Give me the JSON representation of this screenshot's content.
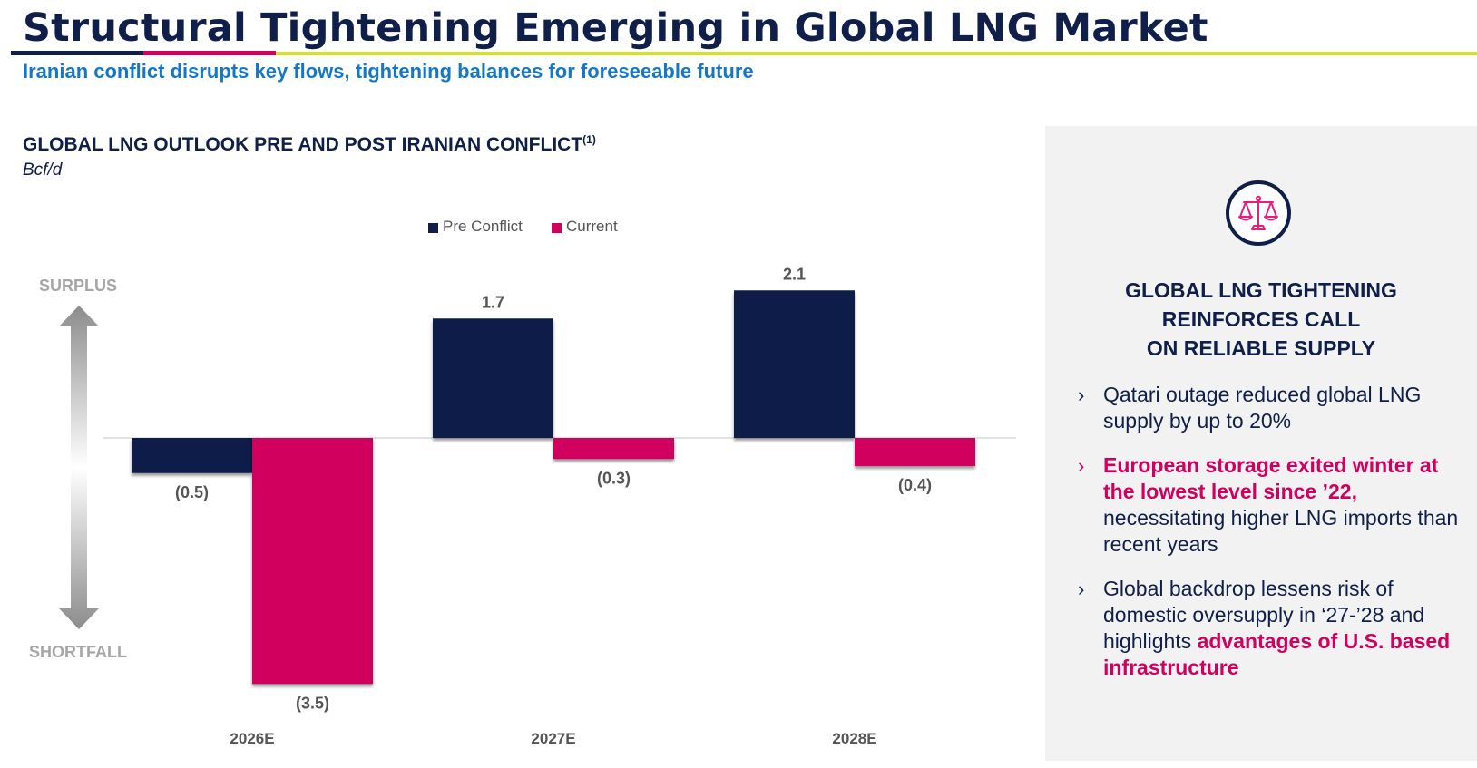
{
  "header": {
    "title": "Structural Tightening Emerging in Global LNG Market",
    "subtitle": "Iranian conflict disrupts key flows, tightening balances for foreseeable future"
  },
  "chart_header": {
    "title": "GLOBAL LNG OUTLOOK PRE AND POST IRANIAN CONFLICT",
    "footnote_marker": "(1)",
    "units": "Bcf/d"
  },
  "axis_words": {
    "top": "SURPLUS",
    "bottom": "SHORTFALL"
  },
  "colors": {
    "navy": "#0f1f4a",
    "pink": "#d1005e",
    "lime": "#d3e02b",
    "blue": "#1677c7",
    "gray": "#a6a6a6"
  },
  "chart_data": {
    "type": "bar",
    "title": "GLOBAL LNG OUTLOOK PRE AND POST IRANIAN CONFLICT",
    "ylabel": "Bcf/d",
    "categories": [
      "2026E",
      "2027E",
      "2028E"
    ],
    "series": [
      {
        "name": "Pre Conflict",
        "color": "#0f1f4a",
        "values": [
          -0.5,
          1.7,
          2.1
        ],
        "labels": [
          "(0.5)",
          "1.7",
          "2.1"
        ]
      },
      {
        "name": "Current",
        "color": "#d1005e",
        "values": [
          -3.5,
          -0.3,
          -0.4
        ],
        "labels": [
          "(3.5)",
          "(0.3)",
          "(0.4)"
        ]
      }
    ],
    "legend_position": "top-center",
    "grid": false
  },
  "side_panel": {
    "icon": "balance-scale-icon",
    "heading_lines": [
      "GLOBAL LNG TIGHTENING",
      "REINFORCES CALL",
      "ON RELIABLE SUPPLY"
    ],
    "bullets": [
      {
        "marker": "›",
        "text": "Qatari outage reduced global LNG supply by up to 20%"
      },
      {
        "marker": "›",
        "highlight": "European storage exited winter at the lowest level since ’22,",
        "text": " necessitating higher LNG imports than recent years"
      },
      {
        "marker": "›",
        "text": "Global backdrop lessens risk of domestic oversupply in ‘27-’28 and highlights ",
        "highlight": "advantages of U.S. based infrastructure"
      }
    ]
  }
}
